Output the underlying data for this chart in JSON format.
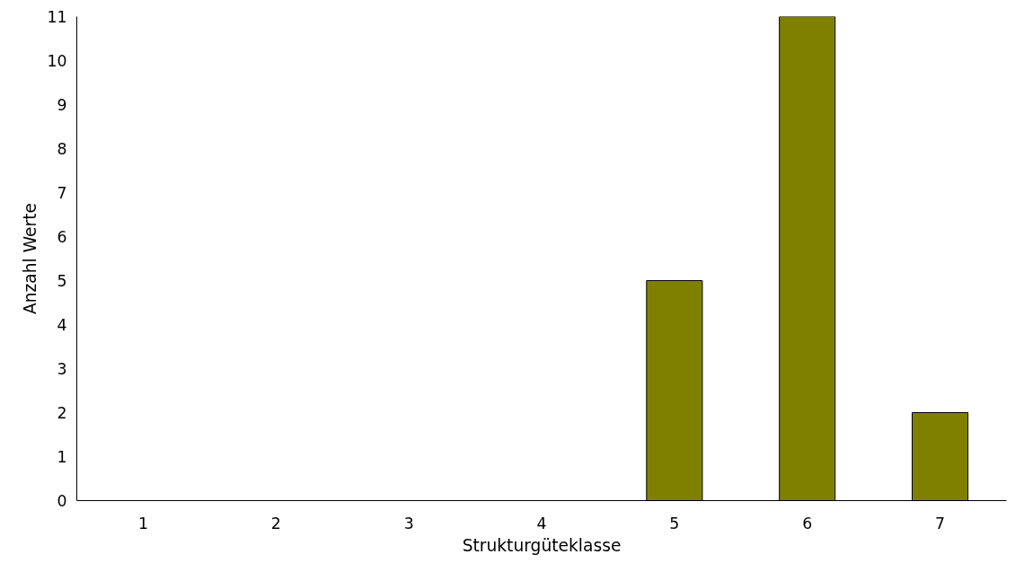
{
  "chart_data": {
    "type": "bar",
    "xlabel": "Strukturgüteklasse",
    "ylabel": "Anzahl Werte",
    "categories": [
      "1",
      "2",
      "3",
      "4",
      "5",
      "6",
      "7"
    ],
    "values": [
      0,
      0,
      0,
      0,
      5,
      11,
      2
    ],
    "color": "#808000",
    "ylim": [
      0,
      11
    ],
    "yticks": [
      0,
      1,
      2,
      3,
      4,
      5,
      6,
      7,
      8,
      9,
      10,
      11
    ],
    "grid": false
  }
}
